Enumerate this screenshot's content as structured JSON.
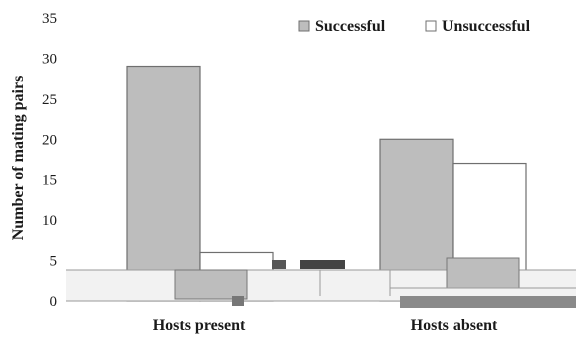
{
  "chart_data": {
    "type": "bar",
    "categories": [
      "Hosts present",
      "Hosts absent"
    ],
    "series": [
      {
        "name": "Successful",
        "values": [
          29,
          20
        ],
        "color": "#bdbdbd"
      },
      {
        "name": "Unsuccessful",
        "values": [
          6,
          17
        ],
        "color": "#ffffff"
      }
    ],
    "ylabel": "Number of mating pairs",
    "ylim": [
      0,
      35
    ],
    "yticks": [
      0,
      5,
      10,
      15,
      20,
      25,
      30,
      35
    ],
    "grid": false,
    "legend_position": "top-right"
  }
}
